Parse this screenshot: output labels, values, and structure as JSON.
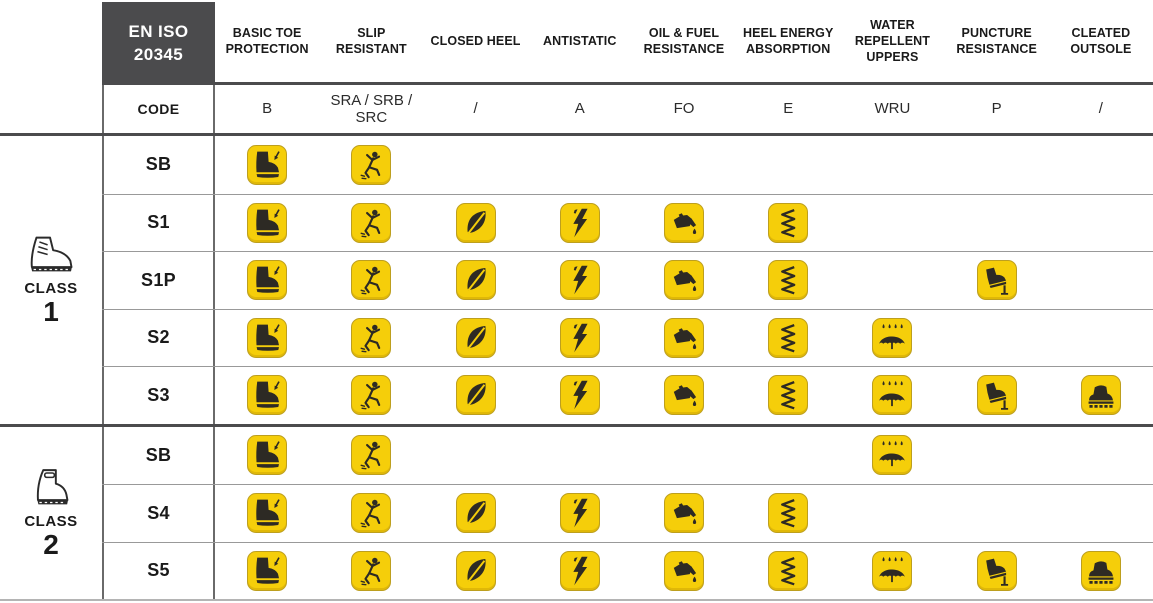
{
  "header": {
    "standard_line1": "EN ISO",
    "standard_line2": "20345",
    "code_label": "CODE",
    "columns": [
      {
        "key": "toe",
        "label": "BASIC TOE PROTECTION",
        "code": "B"
      },
      {
        "key": "slip",
        "label": "SLIP RESISTANT",
        "code": "SRA / SRB / SRC"
      },
      {
        "key": "heel",
        "label": "CLOSED HEEL",
        "code": "/"
      },
      {
        "key": "antistatic",
        "label": "ANTISTATIC",
        "code": "A"
      },
      {
        "key": "oil",
        "label": "OIL & FUEL RESISTANCE",
        "code": "FO"
      },
      {
        "key": "energy",
        "label": "HEEL ENERGY ABSORPTION",
        "code": "E"
      },
      {
        "key": "wru",
        "label": "WATER REPELLENT UPPERS",
        "code": "WRU"
      },
      {
        "key": "puncture",
        "label": "PUNCTURE RESISTANCE",
        "code": "P"
      },
      {
        "key": "cleated",
        "label": "CLEATED OUTSOLE",
        "code": "/"
      }
    ]
  },
  "icon_names": {
    "toe": "toe-protection-icon",
    "slip": "slip-resistant-icon",
    "heel": "closed-heel-icon",
    "antistatic": "antistatic-icon",
    "oil": "oil-fuel-resistance-icon",
    "energy": "heel-energy-absorption-icon",
    "wru": "water-repellent-uppers-icon",
    "puncture": "puncture-resistance-icon",
    "cleated": "cleated-outsole-icon"
  },
  "classes": [
    {
      "label": "CLASS",
      "number": "1",
      "icon_name": "leather-boot-icon",
      "rows": [
        {
          "code": "SB",
          "features": [
            "toe",
            "slip"
          ]
        },
        {
          "code": "S1",
          "features": [
            "toe",
            "slip",
            "heel",
            "antistatic",
            "oil",
            "energy"
          ]
        },
        {
          "code": "S1P",
          "features": [
            "toe",
            "slip",
            "heel",
            "antistatic",
            "oil",
            "energy",
            "puncture"
          ]
        },
        {
          "code": "S2",
          "features": [
            "toe",
            "slip",
            "heel",
            "antistatic",
            "oil",
            "energy",
            "wru"
          ]
        },
        {
          "code": "S3",
          "features": [
            "toe",
            "slip",
            "heel",
            "antistatic",
            "oil",
            "energy",
            "wru",
            "puncture",
            "cleated"
          ]
        }
      ]
    },
    {
      "label": "CLASS",
      "number": "2",
      "icon_name": "rubber-boot-icon",
      "rows": [
        {
          "code": "SB",
          "features": [
            "toe",
            "slip",
            "wru"
          ]
        },
        {
          "code": "S4",
          "features": [
            "toe",
            "slip",
            "heel",
            "antistatic",
            "oil",
            "energy"
          ]
        },
        {
          "code": "S5",
          "features": [
            "toe",
            "slip",
            "heel",
            "antistatic",
            "oil",
            "energy",
            "wru",
            "puncture",
            "cleated"
          ]
        }
      ]
    }
  ],
  "colors": {
    "badge_yellow": "#F5CE0A",
    "badge_border": "#BD9F1E",
    "pictogram": "#2D2A24",
    "header_box": "#4B4B4D",
    "thick_line": "#4B4B4D",
    "thin_line": "#999999",
    "vertical_line": "#6A6A6A",
    "text": "#1A1A1A"
  }
}
